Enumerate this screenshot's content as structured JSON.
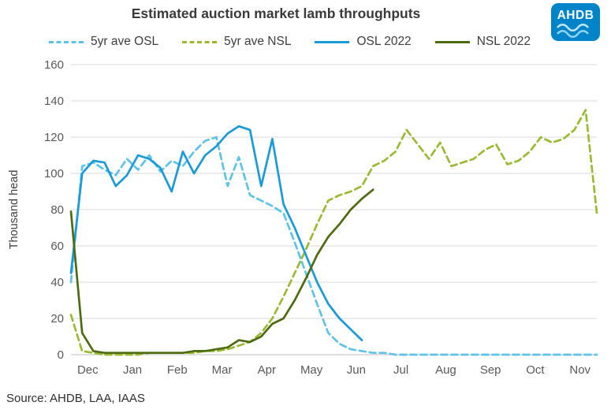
{
  "header": {
    "logo_text": "AHDB",
    "logo_color": "#0084c9"
  },
  "source": "Source: AHDB, LAA, IAAS",
  "chart_data": {
    "type": "line",
    "title": "Estimated auction market lamb throughputs",
    "xlabel": "",
    "ylabel": "Thousand head",
    "ylim": [
      0,
      160
    ],
    "ytick_step": 20,
    "grid": "horizontal",
    "legend_position": "top",
    "x_months": [
      "Dec",
      "Jan",
      "Feb",
      "Mar",
      "Apr",
      "May",
      "Jun",
      "Jul",
      "Aug",
      "Sep",
      "Oct",
      "Nov"
    ],
    "points_per_month": 4,
    "axis_text_color": "#595959",
    "gridline_color": "#d9d9d9",
    "baseline_color": "#bfbfbf",
    "series": [
      {
        "name": "5yr ave OSL",
        "color": "#5fc3e8",
        "dash": true,
        "values": [
          40,
          104,
          106,
          102,
          99,
          108,
          102,
          110,
          101,
          107,
          104,
          112,
          118,
          120,
          93,
          109,
          88,
          85,
          82,
          78,
          62,
          45,
          28,
          12,
          6,
          3,
          2,
          1,
          1,
          0,
          0,
          0,
          0,
          0,
          0,
          0,
          0,
          0,
          0,
          0,
          0,
          0,
          0,
          0,
          0,
          0,
          0,
          0
        ]
      },
      {
        "name": "5yr ave NSL",
        "color": "#9aba33",
        "dash": true,
        "values": [
          22,
          2,
          1,
          0,
          0,
          0,
          0,
          1,
          1,
          1,
          1,
          1,
          2,
          2,
          3,
          5,
          7,
          12,
          20,
          32,
          45,
          58,
          72,
          85,
          88,
          90,
          93,
          104,
          107,
          112,
          124,
          116,
          108,
          117,
          104,
          106,
          108,
          113,
          116,
          105,
          107,
          112,
          120,
          117,
          119,
          124,
          135,
          78
        ]
      },
      {
        "name": "OSL 2022",
        "color": "#1a9ad6",
        "dash": false,
        "values": [
          45,
          100,
          107,
          106,
          93,
          99,
          110,
          108,
          103,
          90,
          112,
          100,
          110,
          115,
          122,
          126,
          124,
          93,
          119,
          83,
          70,
          55,
          40,
          28,
          20,
          14,
          8,
          null,
          null,
          null,
          null,
          null,
          null,
          null,
          null,
          null,
          null,
          null,
          null,
          null,
          null,
          null,
          null,
          null,
          null,
          null,
          null,
          null
        ]
      },
      {
        "name": "NSL 2022",
        "color": "#4e6b12",
        "dash": false,
        "values": [
          79,
          12,
          2,
          1,
          1,
          1,
          1,
          1,
          1,
          1,
          1,
          2,
          2,
          3,
          4,
          8,
          7,
          10,
          17,
          20,
          30,
          42,
          55,
          65,
          72,
          80,
          86,
          91,
          null,
          null,
          null,
          null,
          null,
          null,
          null,
          null,
          null,
          null,
          null,
          null,
          null,
          null,
          null,
          null,
          null,
          null,
          null,
          null
        ]
      }
    ]
  }
}
